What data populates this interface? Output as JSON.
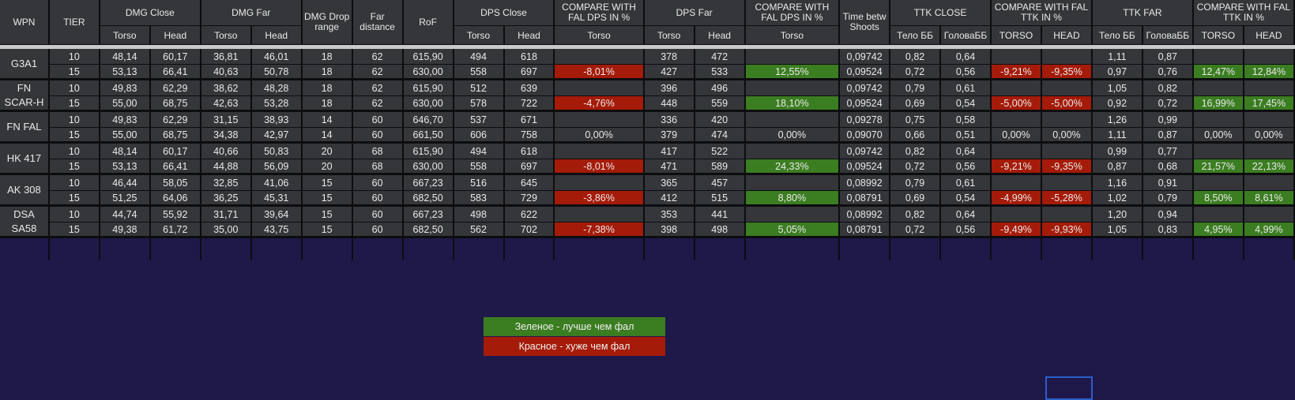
{
  "headers": {
    "wpn": "WPN",
    "tier": "TIER",
    "dmg_close": "DMG Close",
    "dmg_far": "DMG Far",
    "dmg_drop_range": "DMG Drop range",
    "far_distance": "Far distance",
    "rof": "RoF",
    "dps_close": "DPS Close",
    "compare_dps_close": "COMPARE WITH FAL DPS IN %",
    "dps_far": "DPS Far",
    "compare_dps_far": "COMPARE WITH FAL DPS IN %",
    "time_betw_shoots": "Time betw Shoots",
    "ttk_close": "TTK CLOSE",
    "compare_ttk_close": "COMPARE WITH FAL TTK IN %",
    "ttk_far": "TTK FAR",
    "compare_ttk_far": "COMPARE WITH FAL TTK IN %"
  },
  "subheaders": {
    "dmg_close_torso": "Torso",
    "dmg_close_head": "Head",
    "dmg_far_torso": "Torso",
    "dmg_far_head": "Head",
    "dps_close_torso": "Torso",
    "dps_close_head": "Head",
    "compare_dps_close_torso": "Torso",
    "dps_far_torso": "Torso",
    "dps_far_head": "Head",
    "compare_dps_far_torso": "Torso",
    "ttk_close_body": "Тело ББ",
    "ttk_close_head": "ГоловаББ",
    "compare_ttk_close_torso": "TORSO",
    "compare_ttk_close_head": "HEAD",
    "ttk_far_body": "Тело ББ",
    "ttk_far_head": "ГоловаББ",
    "compare_ttk_far_torso": "TORSO",
    "compare_ttk_far_head": "HEAD"
  },
  "weapons": [
    {
      "name": "G3A1",
      "rows": [
        {
          "tier": "10",
          "dc_t": "48,14",
          "dc_h": "60,17",
          "df_t": "36,81",
          "df_h": "46,01",
          "drop": "18",
          "far": "62",
          "rof": "615,90",
          "dpsc_t": "494",
          "dpsc_h": "618",
          "cmp_dpsc": "",
          "dpsf_t": "378",
          "dpsf_h": "472",
          "cmp_dpsf": "",
          "tbs": "0,09742",
          "ttkc_b": "0,82",
          "ttkc_h": "0,64",
          "cmp_ttkc_t": "",
          "cmp_ttkc_h": "",
          "ttkf_b": "1,11",
          "ttkf_h": "0,87",
          "cmp_ttkf_t": "",
          "cmp_ttkf_h": ""
        },
        {
          "tier": "15",
          "dc_t": "53,13",
          "dc_h": "66,41",
          "df_t": "40,63",
          "df_h": "50,78",
          "drop": "18",
          "far": "62",
          "rof": "630,00",
          "dpsc_t": "558",
          "dpsc_h": "697",
          "cmp_dpsc": "-8,01%",
          "dpsf_t": "427",
          "dpsf_h": "533",
          "cmp_dpsf": "12,55%",
          "tbs": "0,09524",
          "ttkc_b": "0,72",
          "ttkc_h": "0,56",
          "cmp_ttkc_t": "-9,21%",
          "cmp_ttkc_h": "-9,35%",
          "ttkf_b": "0,97",
          "ttkf_h": "0,76",
          "cmp_ttkf_t": "12,47%",
          "cmp_ttkf_h": "12,84%"
        }
      ]
    },
    {
      "name": "FN SCAR-H",
      "rows": [
        {
          "tier": "10",
          "dc_t": "49,83",
          "dc_h": "62,29",
          "df_t": "38,62",
          "df_h": "48,28",
          "drop": "18",
          "far": "62",
          "rof": "615,90",
          "dpsc_t": "512",
          "dpsc_h": "639",
          "cmp_dpsc": "",
          "dpsf_t": "396",
          "dpsf_h": "496",
          "cmp_dpsf": "",
          "tbs": "0,09742",
          "ttkc_b": "0,79",
          "ttkc_h": "0,61",
          "cmp_ttkc_t": "",
          "cmp_ttkc_h": "",
          "ttkf_b": "1,05",
          "ttkf_h": "0,82",
          "cmp_ttkf_t": "",
          "cmp_ttkf_h": ""
        },
        {
          "tier": "15",
          "dc_t": "55,00",
          "dc_h": "68,75",
          "df_t": "42,63",
          "df_h": "53,28",
          "drop": "18",
          "far": "62",
          "rof": "630,00",
          "dpsc_t": "578",
          "dpsc_h": "722",
          "cmp_dpsc": "-4,76%",
          "dpsf_t": "448",
          "dpsf_h": "559",
          "cmp_dpsf": "18,10%",
          "tbs": "0,09524",
          "ttkc_b": "0,69",
          "ttkc_h": "0,54",
          "cmp_ttkc_t": "-5,00%",
          "cmp_ttkc_h": "-5,00%",
          "ttkf_b": "0,92",
          "ttkf_h": "0,72",
          "cmp_ttkf_t": "16,99%",
          "cmp_ttkf_h": "17,45%"
        }
      ]
    },
    {
      "name": "FN FAL",
      "rows": [
        {
          "tier": "10",
          "dc_t": "49,83",
          "dc_h": "62,29",
          "df_t": "31,15",
          "df_h": "38,93",
          "drop": "14",
          "far": "60",
          "rof": "646,70",
          "dpsc_t": "537",
          "dpsc_h": "671",
          "cmp_dpsc": "",
          "dpsf_t": "336",
          "dpsf_h": "420",
          "cmp_dpsf": "",
          "tbs": "0,09278",
          "ttkc_b": "0,75",
          "ttkc_h": "0,58",
          "cmp_ttkc_t": "",
          "cmp_ttkc_h": "",
          "ttkf_b": "1,26",
          "ttkf_h": "0,99",
          "cmp_ttkf_t": "",
          "cmp_ttkf_h": ""
        },
        {
          "tier": "15",
          "dc_t": "55,00",
          "dc_h": "68,75",
          "df_t": "34,38",
          "df_h": "42,97",
          "drop": "14",
          "far": "60",
          "rof": "661,50",
          "dpsc_t": "606",
          "dpsc_h": "758",
          "cmp_dpsc": "0,00%",
          "dpsf_t": "379",
          "dpsf_h": "474",
          "cmp_dpsf": "0,00%",
          "tbs": "0,09070",
          "ttkc_b": "0,66",
          "ttkc_h": "0,51",
          "cmp_ttkc_t": "0,00%",
          "cmp_ttkc_h": "0,00%",
          "ttkf_b": "1,11",
          "ttkf_h": "0,87",
          "cmp_ttkf_t": "0,00%",
          "cmp_ttkf_h": "0,00%"
        }
      ]
    },
    {
      "name": "HK 417",
      "rows": [
        {
          "tier": "10",
          "dc_t": "48,14",
          "dc_h": "60,17",
          "df_t": "40,66",
          "df_h": "50,83",
          "drop": "20",
          "far": "68",
          "rof": "615,90",
          "dpsc_t": "494",
          "dpsc_h": "618",
          "cmp_dpsc": "",
          "dpsf_t": "417",
          "dpsf_h": "522",
          "cmp_dpsf": "",
          "tbs": "0,09742",
          "ttkc_b": "0,82",
          "ttkc_h": "0,64",
          "cmp_ttkc_t": "",
          "cmp_ttkc_h": "",
          "ttkf_b": "0,99",
          "ttkf_h": "0,77",
          "cmp_ttkf_t": "",
          "cmp_ttkf_h": ""
        },
        {
          "tier": "15",
          "dc_t": "53,13",
          "dc_h": "66,41",
          "df_t": "44,88",
          "df_h": "56,09",
          "drop": "20",
          "far": "68",
          "rof": "630,00",
          "dpsc_t": "558",
          "dpsc_h": "697",
          "cmp_dpsc": "-8,01%",
          "dpsf_t": "471",
          "dpsf_h": "589",
          "cmp_dpsf": "24,33%",
          "tbs": "0,09524",
          "ttkc_b": "0,72",
          "ttkc_h": "0,56",
          "cmp_ttkc_t": "-9,21%",
          "cmp_ttkc_h": "-9,35%",
          "ttkf_b": "0,87",
          "ttkf_h": "0,68",
          "cmp_ttkf_t": "21,57%",
          "cmp_ttkf_h": "22,13%"
        }
      ]
    },
    {
      "name": "AK 308",
      "rows": [
        {
          "tier": "10",
          "dc_t": "46,44",
          "dc_h": "58,05",
          "df_t": "32,85",
          "df_h": "41,06",
          "drop": "15",
          "far": "60",
          "rof": "667,23",
          "dpsc_t": "516",
          "dpsc_h": "645",
          "cmp_dpsc": "",
          "dpsf_t": "365",
          "dpsf_h": "457",
          "cmp_dpsf": "",
          "tbs": "0,08992",
          "ttkc_b": "0,79",
          "ttkc_h": "0,61",
          "cmp_ttkc_t": "",
          "cmp_ttkc_h": "",
          "ttkf_b": "1,16",
          "ttkf_h": "0,91",
          "cmp_ttkf_t": "",
          "cmp_ttkf_h": ""
        },
        {
          "tier": "15",
          "dc_t": "51,25",
          "dc_h": "64,06",
          "df_t": "36,25",
          "df_h": "45,31",
          "drop": "15",
          "far": "60",
          "rof": "682,50",
          "dpsc_t": "583",
          "dpsc_h": "729",
          "cmp_dpsc": "-3,86%",
          "dpsf_t": "412",
          "dpsf_h": "515",
          "cmp_dpsf": "8,80%",
          "tbs": "0,08791",
          "ttkc_b": "0,69",
          "ttkc_h": "0,54",
          "cmp_ttkc_t": "-4,99%",
          "cmp_ttkc_h": "-5,28%",
          "ttkf_b": "1,02",
          "ttkf_h": "0,79",
          "cmp_ttkf_t": "8,50%",
          "cmp_ttkf_h": "8,61%"
        }
      ]
    },
    {
      "name": "DSA SA58",
      "rows": [
        {
          "tier": "10",
          "dc_t": "44,74",
          "dc_h": "55,92",
          "df_t": "31,71",
          "df_h": "39,64",
          "drop": "15",
          "far": "60",
          "rof": "667,23",
          "dpsc_t": "498",
          "dpsc_h": "622",
          "cmp_dpsc": "",
          "dpsf_t": "353",
          "dpsf_h": "441",
          "cmp_dpsf": "",
          "tbs": "0,08992",
          "ttkc_b": "0,82",
          "ttkc_h": "0,64",
          "cmp_ttkc_t": "",
          "cmp_ttkc_h": "",
          "ttkf_b": "1,20",
          "ttkf_h": "0,94",
          "cmp_ttkf_t": "",
          "cmp_ttkf_h": ""
        },
        {
          "tier": "15",
          "dc_t": "49,38",
          "dc_h": "61,72",
          "df_t": "35,00",
          "df_h": "43,75",
          "drop": "15",
          "far": "60",
          "rof": "682,50",
          "dpsc_t": "562",
          "dpsc_h": "702",
          "cmp_dpsc": "-7,38%",
          "dpsf_t": "398",
          "dpsf_h": "498",
          "cmp_dpsf": "5,05%",
          "tbs": "0,08791",
          "ttkc_b": "0,72",
          "ttkc_h": "0,56",
          "cmp_ttkc_t": "-9,49%",
          "cmp_ttkc_h": "-9,93%",
          "ttkf_b": "1,05",
          "ttkf_h": "0,83",
          "cmp_ttkf_t": "4,95%",
          "cmp_ttkf_h": "4,99%"
        }
      ]
    }
  ],
  "legend": {
    "green_label": "Зеленое - лучше чем фал",
    "red_label": "Красное - хуже чем фал"
  },
  "colors": {
    "page_bg": "#1f1949",
    "cell_bg": "#35363a",
    "worse": "#a51b09",
    "better": "#3b7d21",
    "selection": "#2a5ecb"
  }
}
